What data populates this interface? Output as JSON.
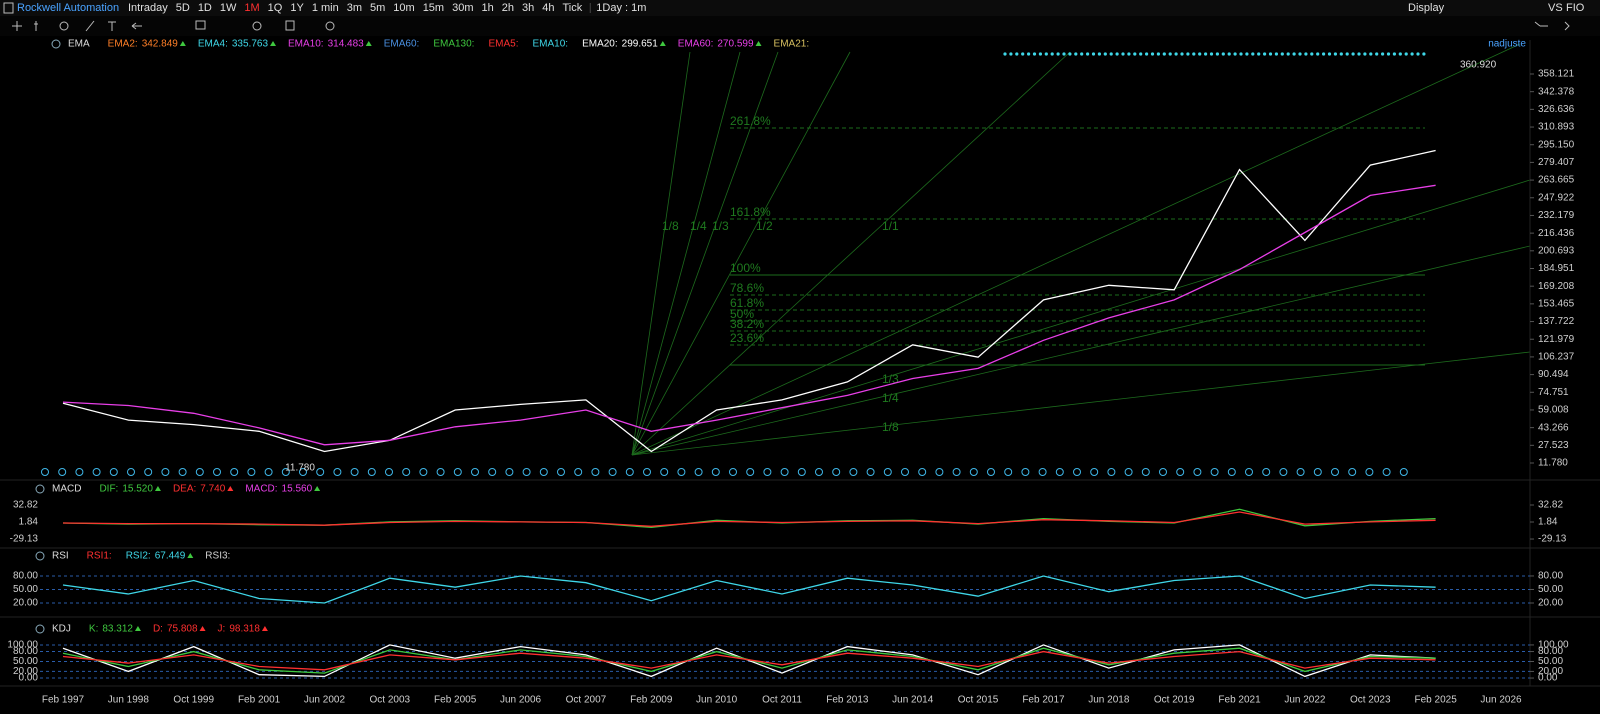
{
  "toolbar": {
    "symbol": "Rockwell Automation",
    "periods": [
      "Intraday",
      "5D",
      "1D",
      "1W",
      "1M",
      "1Q",
      "1Y",
      "1 min",
      "3m",
      "5m",
      "10m",
      "15m",
      "30m",
      "1h",
      "2h",
      "3h",
      "4h",
      "Tick"
    ],
    "active_period": 4,
    "interval": "1Day : 1m",
    "display": "Display",
    "right_items": [
      "VS",
      "FIO"
    ]
  },
  "main_panel": {
    "indicator": "EMA",
    "readouts": [
      {
        "label": "EMA2:",
        "value": "342.849",
        "color": "#ff7f27"
      },
      {
        "label": "EMA4:",
        "value": "335.763",
        "color": "#3fd7e8"
      },
      {
        "label": "EMA10:",
        "value": "314.483",
        "color": "#e83fe8"
      },
      {
        "label": "EMA60:",
        "color": "#4a90e2"
      },
      {
        "label": "EMA130:",
        "color": "#3fc83f"
      },
      {
        "label": "EMA5:",
        "color": "#ff3030"
      },
      {
        "label": "EMA10:",
        "color": "#3fd7e8"
      },
      {
        "label": "EMA20:",
        "value": "299.651",
        "color": "#ffffff"
      },
      {
        "label": "EMA60:",
        "value": "270.599",
        "color": "#e83fe8"
      },
      {
        "label": "EMA21:",
        "color": "#d8c060"
      }
    ],
    "adjust": "nadjuste",
    "last_price": "360.920",
    "low_label": "11.780",
    "fib_labels": [
      "261.8%",
      "161.8%",
      "100%",
      "78.6%",
      "61.8%",
      "50%",
      "38.2%",
      "23.6%"
    ],
    "fan_labels_top": [
      "1/8",
      "1/4",
      "1/3",
      "1/2",
      "1/1"
    ],
    "fan_labels_bottom": [
      "1/3",
      "1/4",
      "1/8"
    ]
  },
  "indicator_headers": [
    {
      "name": "MACD",
      "readouts": [
        {
          "label": "DIF:",
          "value": "15.520",
          "color": "#3fc83f"
        },
        {
          "label": "DEA:",
          "value": "7.740",
          "color": "#ff3030"
        },
        {
          "label": "MACD:",
          "value": "15.560",
          "color": "#e83fe8"
        }
      ]
    },
    {
      "name": "RSI",
      "readouts": [
        {
          "label": "RSI1:",
          "color": "#ff3030"
        },
        {
          "label": "RSI2:",
          "value": "67.449",
          "color": "#3fd7e8"
        },
        {
          "label": "RSI3:",
          "color": "#d0d0d0"
        }
      ]
    },
    {
      "name": "KDJ",
      "readouts": [
        {
          "label": "K:",
          "value": "83.312",
          "color": "#3fc83f"
        },
        {
          "label": "D:",
          "value": "75.808",
          "color": "#ff3030"
        },
        {
          "label": "J:",
          "value": "98.318",
          "color": "#ff3030"
        }
      ]
    }
  ],
  "chart_data": [
    {
      "type": "line",
      "categories": [
        "Feb 1997",
        "Jun 1998",
        "Oct 1999",
        "Feb 2001",
        "Jun 2002",
        "Oct 2003",
        "Feb 2005",
        "Jun 2006",
        "Oct 2007",
        "Feb 2009",
        "Jun 2010",
        "Oct 2011",
        "Feb 2013",
        "Jun 2014",
        "Oct 2015",
        "Feb 2017",
        "Jun 2018",
        "Oct 2019",
        "Feb 2021",
        "Jun 2022",
        "Oct 2023",
        "Feb 2025",
        "Jun 2026"
      ],
      "series": [
        {
          "color": "#ffffff",
          "values": [
            65,
            50,
            46,
            40,
            22,
            32,
            59,
            64,
            68,
            22,
            59,
            68,
            84,
            117,
            106,
            157,
            170,
            166,
            273,
            210,
            277,
            290,
            null
          ]
        },
        {
          "color": "#e83fe8",
          "values": [
            66,
            63,
            56,
            43,
            28,
            32,
            44,
            50,
            59,
            40,
            50,
            61,
            72,
            87,
            96,
            121,
            141,
            157,
            184,
            217,
            250,
            259,
            null
          ]
        }
      ],
      "ylim": [
        1.1,
        377.7
      ],
      "yticks": [
        358.121,
        342.378,
        326.636,
        310.893,
        {
          "value": 295.15,
          "label": "295.150"
        },
        279.407,
        263.665,
        247.922,
        232.179,
        216.436,
        200.693,
        184.951,
        169.208,
        153.465,
        137.722,
        121.979,
        106.237,
        90.494,
        74.751,
        59.008,
        43.266,
        27.523,
        {
          "value": 11.78,
          "label": "11.780"
        }
      ],
      "grid": false
    },
    {
      "type": "line",
      "series": [
        {
          "color": "#3fc83f",
          "values": [
            0,
            -2,
            -1,
            -3,
            -4,
            2,
            4,
            2,
            1,
            -8,
            5,
            0,
            4,
            5,
            -2,
            8,
            3,
            0,
            25,
            -5,
            3,
            8,
            null
          ]
        },
        {
          "color": "#ff3030",
          "values": [
            0,
            -1,
            -1,
            -2,
            -4,
            1,
            3,
            2,
            1,
            -6,
            3,
            1,
            3,
            4,
            -1,
            6,
            4,
            1,
            20,
            -2,
            2,
            5,
            null
          ]
        }
      ],
      "ylim": [
        -40,
        51
      ],
      "yticks": [
        32.82,
        1.84,
        -29.13
      ],
      "grid": false
    },
    {
      "type": "line",
      "series": [
        {
          "color": "#3fd7e8",
          "values": [
            60,
            40,
            70,
            30,
            20,
            75,
            55,
            80,
            65,
            25,
            70,
            40,
            75,
            60,
            35,
            80,
            45,
            70,
            80,
            30,
            60,
            55,
            null
          ]
        }
      ],
      "ylim": [
        0,
        111
      ],
      "yticks": [
        {
          "value": 80,
          "label": "80.00"
        },
        {
          "value": 50,
          "label": "50.00"
        },
        {
          "value": 20,
          "label": "20.00"
        }
      ],
      "grid": true
    },
    {
      "type": "line",
      "series": [
        {
          "color": "#ffffff",
          "values": [
            90,
            20,
            95,
            10,
            5,
            100,
            60,
            95,
            70,
            5,
            90,
            15,
            95,
            70,
            10,
            100,
            30,
            85,
            100,
            5,
            70,
            60,
            null
          ]
        },
        {
          "color": "#3fc83f",
          "values": [
            75,
            35,
            80,
            25,
            15,
            85,
            55,
            85,
            65,
            20,
            80,
            30,
            85,
            65,
            25,
            90,
            40,
            75,
            90,
            20,
            65,
            60,
            null
          ]
        },
        {
          "color": "#ff3030",
          "values": [
            65,
            45,
            70,
            35,
            25,
            70,
            55,
            75,
            60,
            30,
            70,
            40,
            75,
            60,
            35,
            80,
            45,
            65,
            80,
            30,
            60,
            55,
            null
          ]
        }
      ],
      "ylim": [
        -18,
        127
      ],
      "yticks": [
        {
          "value": 100,
          "label": "100.00"
        },
        {
          "value": 80,
          "label": "80.00"
        },
        {
          "value": 50,
          "label": "50.00"
        },
        {
          "value": 20,
          "label": "20.00"
        },
        {
          "value": 0,
          "label": "0.00"
        }
      ],
      "grid": true
    }
  ]
}
